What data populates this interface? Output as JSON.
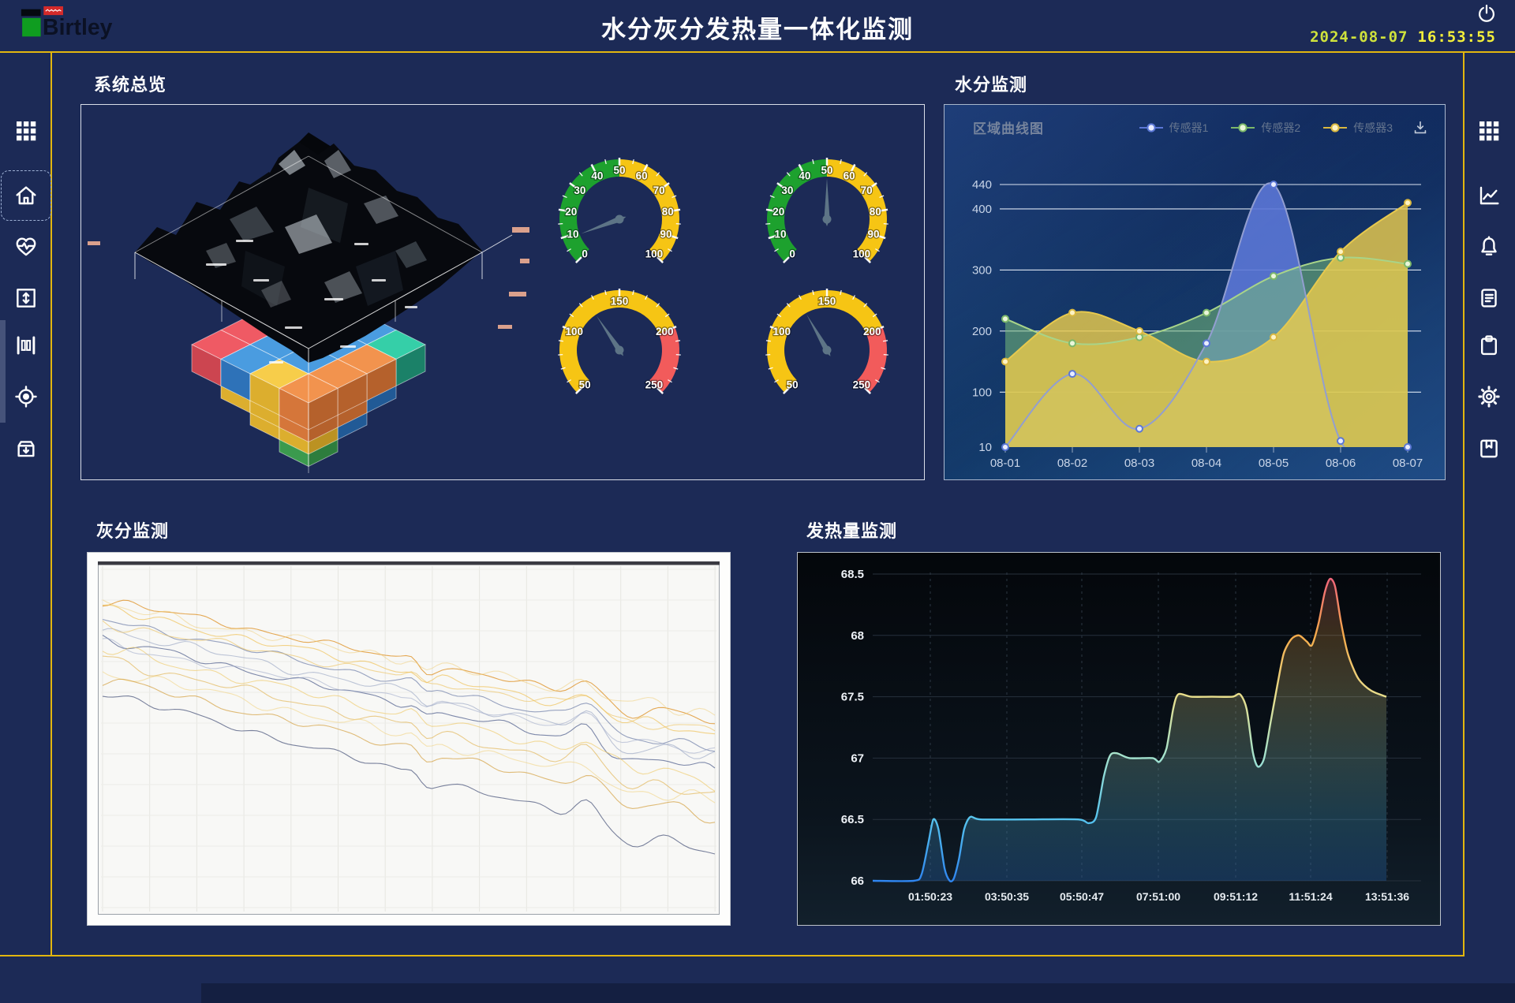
{
  "colors": {
    "background": "#1c2a56",
    "accent_line": "#e2b60e",
    "datetime": "#f2ee3a",
    "gauge_green": "#1da12e",
    "gauge_yellow": "#f6c514",
    "gauge_red": "#f25b5b",
    "needle": "#5d7486",
    "logo_red": "#d42a2a",
    "logo_green": "#0f9d20"
  },
  "header": {
    "logo_text": "Birtley",
    "title": "水分灰分发热量一体化监测",
    "date": "2024-08-07",
    "time": "16:53:55"
  },
  "sidebar_left": {
    "items": [
      {
        "id": "apps",
        "icon": "grid-icon",
        "selected": false
      },
      {
        "id": "home",
        "icon": "home-icon",
        "selected": true
      },
      {
        "id": "health",
        "icon": "heart-pulse-icon",
        "selected": false
      },
      {
        "id": "level",
        "icon": "arrows-vertical-icon",
        "selected": false
      },
      {
        "id": "columns",
        "icon": "columns-icon",
        "selected": false
      },
      {
        "id": "target",
        "icon": "target-icon",
        "selected": false
      },
      {
        "id": "archive",
        "icon": "archive-down-icon",
        "selected": false
      }
    ]
  },
  "sidebar_right": {
    "items": [
      {
        "id": "apps",
        "icon": "grid-icon",
        "selected": false
      },
      {
        "id": "trend",
        "icon": "line-chart-icon",
        "selected": false
      },
      {
        "id": "alarm",
        "icon": "bell-icon",
        "selected": false
      },
      {
        "id": "report",
        "icon": "document-icon",
        "selected": false
      },
      {
        "id": "tasks",
        "icon": "clipboard-icon",
        "selected": false
      },
      {
        "id": "settings",
        "icon": "gear-icon",
        "selected": false
      },
      {
        "id": "save",
        "icon": "book-icon",
        "selected": false
      }
    ]
  },
  "panels": {
    "overview": {
      "title": "系统总览",
      "gauges": [
        {
          "min": 0,
          "max": 100,
          "value": 9,
          "label_step": 10,
          "minor_step": 5,
          "labels": [
            0,
            10,
            20,
            30,
            40,
            50,
            60,
            70,
            80,
            90,
            100
          ],
          "bands": [
            {
              "from": 0,
              "to": 50,
              "color": "#1da12e"
            },
            {
              "from": 50,
              "to": 100,
              "color": "#f6c514"
            }
          ]
        },
        {
          "min": 0,
          "max": 100,
          "value": 50,
          "label_step": 10,
          "minor_step": 5,
          "labels": [
            0,
            10,
            20,
            30,
            40,
            50,
            60,
            70,
            80,
            90,
            100
          ],
          "bands": [
            {
              "from": 0,
              "to": 50,
              "color": "#1da12e"
            },
            {
              "from": 50,
              "to": 100,
              "color": "#f6c514"
            }
          ]
        },
        {
          "min": 50,
          "max": 250,
          "value": 125,
          "label_step": 50,
          "minor_step": 10,
          "labels": [
            50,
            100,
            150,
            200,
            250
          ],
          "bands": [
            {
              "from": 50,
              "to": 200,
              "color": "#f6c514"
            },
            {
              "from": 200,
              "to": 250,
              "color": "#f25b5b"
            }
          ]
        },
        {
          "min": 50,
          "max": 250,
          "value": 128,
          "label_step": 50,
          "minor_step": 10,
          "labels": [
            50,
            100,
            150,
            200,
            250
          ],
          "bands": [
            {
              "from": 50,
              "to": 200,
              "color": "#f6c514"
            },
            {
              "from": 200,
              "to": 250,
              "color": "#f25b5b"
            }
          ]
        }
      ],
      "stack_palette": {
        "teal": {
          "t": "#35cfa8",
          "l": "#24a383",
          "r": "#1b8168"
        },
        "blue": {
          "t": "#4a9ce0",
          "l": "#2e72b8",
          "r": "#215a96"
        },
        "red": {
          "t": "#ef5a64",
          "l": "#cc4550",
          "r": "#a93742"
        },
        "yellow": {
          "t": "#f7cd4a",
          "l": "#dcae2e",
          "r": "#bb9222"
        },
        "orange": {
          "t": "#f2934e",
          "l": "#d5763a",
          "r": "#b5612c"
        },
        "green": {
          "t": "#4fb863",
          "l": "#3b9a4e",
          "r": "#2d7d3d"
        }
      },
      "stack_levels": [
        {
          "n": 4,
          "blocks": [
            [
              0,
              0,
              "teal"
            ],
            [
              1,
              0,
              "blue"
            ],
            [
              2,
              0,
              "blue"
            ],
            [
              3,
              0,
              "teal"
            ],
            [
              0,
              1,
              "teal"
            ],
            [
              1,
              1,
              "blue"
            ],
            [
              2,
              1,
              "blue"
            ],
            [
              3,
              1,
              "orange"
            ],
            [
              0,
              2,
              "red"
            ],
            [
              1,
              2,
              "blue"
            ],
            [
              2,
              2,
              "blue"
            ],
            [
              3,
              2,
              "orange"
            ],
            [
              0,
              3,
              "red"
            ],
            [
              1,
              3,
              "blue"
            ],
            [
              2,
              3,
              "yellow"
            ],
            [
              3,
              3,
              "orange"
            ]
          ]
        },
        {
          "n": 3,
          "blocks": [
            [
              0,
              0,
              "blue"
            ],
            [
              1,
              0,
              "blue"
            ],
            [
              2,
              0,
              "blue"
            ],
            [
              0,
              1,
              "yellow"
            ],
            [
              1,
              1,
              "blue"
            ],
            [
              2,
              1,
              "orange"
            ],
            [
              0,
              2,
              "yellow"
            ],
            [
              1,
              2,
              "yellow"
            ],
            [
              2,
              2,
              "orange"
            ]
          ]
        },
        {
          "n": 2,
          "blocks": [
            [
              0,
              0,
              "yellow"
            ],
            [
              1,
              0,
              "blue"
            ],
            [
              0,
              1,
              "yellow"
            ],
            [
              1,
              1,
              "yellow"
            ]
          ]
        },
        {
          "n": 1,
          "blocks": [
            [
              0,
              0,
              "green"
            ]
          ]
        }
      ]
    },
    "moisture": {
      "title": "水分监测",
      "chart_label": "区域曲线图",
      "download_icon": "download-icon",
      "chart_data": {
        "type": "area",
        "x": [
          "08-01",
          "08-02",
          "08-03",
          "08-04",
          "08-05",
          "08-06",
          "08-07"
        ],
        "y_ticks": [
          10,
          100,
          200,
          300,
          400,
          440
        ],
        "ylim": [
          10,
          440
        ],
        "legend_position": "top-right",
        "series": [
          {
            "name": "传感器1",
            "values": [
              10,
              130,
              40,
              180,
              440,
              20,
              10
            ],
            "area": "rgba(91,119,214,0.9)",
            "line": "#929ed0",
            "point_fill": "#e9edff",
            "point_stroke": "#5b77d6"
          },
          {
            "name": "传感器2",
            "values": [
              220,
              180,
              190,
              230,
              290,
              320,
              310
            ],
            "area": "rgba(118,188,120,0.55)",
            "line": "#a8d489",
            "point_fill": "#eaf6da",
            "point_stroke": "#7cb86a"
          },
          {
            "name": "传感器3",
            "values": [
              150,
              230,
              200,
              150,
              190,
              330,
              410
            ],
            "area": "rgba(233,203,77,0.82)",
            "line": "#e7c94e",
            "point_fill": "#fdf3c4",
            "point_stroke": "#d9b840"
          }
        ]
      }
    },
    "ash": {
      "title": "灰分监测",
      "chart_data": {
        "type": "line",
        "description": "unlabeled noisy declining trend lines on white grid",
        "series": [
          {
            "color": "#e09a36",
            "opacity": 0.85,
            "y_start": 9,
            "y_end": 46,
            "amp": 1.4,
            "seed": 1,
            "bump": 5
          },
          {
            "color": "#f0c258",
            "opacity": 0.7,
            "y_start": 12,
            "y_end": 50,
            "amp": 1.7,
            "seed": 2,
            "bump": 4
          },
          {
            "color": "#7e8cb2",
            "opacity": 0.8,
            "y_start": 15,
            "y_end": 54,
            "amp": 1.5,
            "seed": 3,
            "bump": 6
          },
          {
            "color": "#95a2c2",
            "opacity": 0.6,
            "y_start": 18,
            "y_end": 57,
            "amp": 1.9,
            "seed": 4,
            "bump": 5
          },
          {
            "color": "#5e6c96",
            "opacity": 0.8,
            "y_start": 21,
            "y_end": 61,
            "amp": 1.6,
            "seed": 5,
            "bump": 6
          },
          {
            "color": "#eec968",
            "opacity": 0.65,
            "y_start": 24,
            "y_end": 64,
            "amp": 2.0,
            "seed": 6,
            "bump": 4
          },
          {
            "color": "#e0ad42",
            "opacity": 0.6,
            "y_start": 27,
            "y_end": 68,
            "amp": 1.8,
            "seed": 7,
            "bump": 5
          },
          {
            "color": "#f1d383",
            "opacity": 0.6,
            "y_start": 30,
            "y_end": 71,
            "amp": 2.1,
            "seed": 8,
            "bump": 4
          },
          {
            "color": "#d19933",
            "opacity": 0.65,
            "y_start": 33,
            "y_end": 75,
            "amp": 1.7,
            "seed": 9,
            "bump": 5
          },
          {
            "color": "#9aa6c6",
            "opacity": 0.55,
            "y_start": 23,
            "y_end": 55,
            "amp": 1.4,
            "seed": 10,
            "bump": 4
          },
          {
            "color": "#edc25c",
            "opacity": 0.6,
            "y_start": 16,
            "y_end": 49,
            "amp": 1.6,
            "seed": 11,
            "bump": 4
          },
          {
            "color": "#6a7392",
            "opacity": 0.9,
            "y_start": 37,
            "y_end": 86,
            "amp": 1.5,
            "seed": 12,
            "bump": 6
          },
          {
            "color": "#efcb72",
            "opacity": 0.5,
            "y_start": 11,
            "y_end": 44,
            "amp": 2.2,
            "seed": 13,
            "bump": 3
          }
        ]
      }
    },
    "calorific": {
      "title": "发热量监测",
      "chart_data": {
        "type": "line",
        "x_labels": [
          "01:50:23",
          "03:50:35",
          "05:50:47",
          "07:51:00",
          "09:51:12",
          "11:51:24",
          "13:51:36"
        ],
        "y_ticks": [
          66,
          66.5,
          67,
          67.5,
          68,
          68.5
        ],
        "ylim": [
          66,
          68.5
        ],
        "gradient": [
          "#f0607e",
          "#f5ab4b",
          "#e8df8d",
          "#a2e2cf",
          "#56c3ee",
          "#2f85ef"
        ],
        "points": [
          [
            0,
            66
          ],
          [
            0.08,
            66
          ],
          [
            0.095,
            66.05
          ],
          [
            0.108,
            66.3
          ],
          [
            0.118,
            66.5
          ],
          [
            0.128,
            66.42
          ],
          [
            0.14,
            66.1
          ],
          [
            0.15,
            66.0
          ],
          [
            0.158,
            66.02
          ],
          [
            0.168,
            66.18
          ],
          [
            0.178,
            66.42
          ],
          [
            0.19,
            66.52
          ],
          [
            0.21,
            66.5
          ],
          [
            0.3,
            66.5
          ],
          [
            0.4,
            66.5
          ],
          [
            0.42,
            66.47
          ],
          [
            0.435,
            66.52
          ],
          [
            0.45,
            66.85
          ],
          [
            0.462,
            67.02
          ],
          [
            0.475,
            67.04
          ],
          [
            0.5,
            67.0
          ],
          [
            0.545,
            67.0
          ],
          [
            0.558,
            66.97
          ],
          [
            0.572,
            67.08
          ],
          [
            0.585,
            67.4
          ],
          [
            0.595,
            67.52
          ],
          [
            0.62,
            67.5
          ],
          [
            0.66,
            67.5
          ],
          [
            0.7,
            67.5
          ],
          [
            0.715,
            67.52
          ],
          [
            0.728,
            67.4
          ],
          [
            0.74,
            67.05
          ],
          [
            0.75,
            66.93
          ],
          [
            0.762,
            67.0
          ],
          [
            0.775,
            67.3
          ],
          [
            0.788,
            67.6
          ],
          [
            0.8,
            67.85
          ],
          [
            0.815,
            67.97
          ],
          [
            0.83,
            68.0
          ],
          [
            0.845,
            67.95
          ],
          [
            0.855,
            67.92
          ],
          [
            0.868,
            68.1
          ],
          [
            0.88,
            68.35
          ],
          [
            0.89,
            68.46
          ],
          [
            0.9,
            68.4
          ],
          [
            0.912,
            68.1
          ],
          [
            0.925,
            67.85
          ],
          [
            0.945,
            67.65
          ],
          [
            0.97,
            67.55
          ],
          [
            1,
            67.5
          ]
        ]
      }
    }
  }
}
